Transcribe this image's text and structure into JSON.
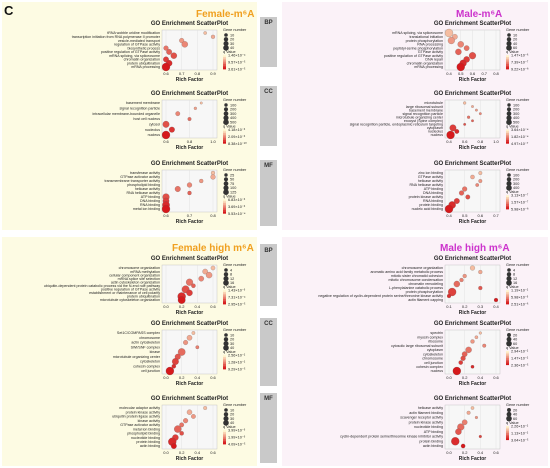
{
  "panel_letter": "C",
  "quadrants": [
    {
      "id": "female",
      "title": "Female-m⁶A",
      "color": "#f0a020"
    },
    {
      "id": "male",
      "title": "Male-m⁶A",
      "color": "#cc33cc"
    },
    {
      "id": "female-high",
      "title": "Female high m⁶A",
      "color": "#f0a020"
    },
    {
      "id": "male-high",
      "title": "Male high m⁶A",
      "color": "#cc33cc"
    }
  ],
  "categories": [
    {
      "label": "BP"
    },
    {
      "label": "CC"
    },
    {
      "label": "MF"
    },
    {
      "label": "BP"
    },
    {
      "label": "CC"
    },
    {
      "label": "MF"
    }
  ],
  "chart_data": [
    {
      "type": "scatter",
      "title": "GO Enrichment ScatterPlot",
      "xlabel": "Rich Factor",
      "legend_size_title": "Gene number",
      "legend_color_title": "q Value",
      "terms": [
        "tRNA wobble uridine modification",
        "transcription initiation from RNA polymerase II promoter",
        "vesicle-mediated transport",
        "regulation of GTPase activity",
        "biosynthetic process",
        "positive regulation of GTPase activity",
        "mRNA splicing, via spliceosome",
        "chromatin organization",
        "protein ubiquitination",
        "mRNA processing"
      ],
      "x": [
        0.85,
        0.9,
        0.7,
        0.72,
        0.6,
        0.62,
        0.65,
        0.6,
        0.62,
        0.55
      ],
      "size": [
        5,
        10,
        20,
        40,
        20,
        30,
        40,
        30,
        40,
        80
      ],
      "xticks": [
        "0.6",
        "0.7",
        "0.8",
        "0.9"
      ],
      "size_legend": [
        "10",
        "20",
        "30",
        "40"
      ],
      "color_legend": [
        "1.46×10⁻⁴",
        "9.57×10⁻⁵",
        "3.61×10⁻⁵"
      ]
    },
    {
      "type": "scatter",
      "title": "GO Enrichment ScatterPlot",
      "xlabel": "Rich Factor",
      "legend_size_title": "Gene number",
      "legend_color_title": "q Value",
      "terms": [
        "mRNA splicing, via spliceosome",
        "translational initiation",
        "protein phosphorylation",
        "RNA processing",
        "peptidyl-serine phosphorylation",
        "GTPase activity",
        "positive regulation of GTPase activity",
        "DNA repair",
        "chromatin organization",
        "mRNA processing"
      ],
      "x": [
        0.4,
        0.45,
        0.42,
        0.5,
        0.55,
        0.48,
        0.6,
        0.55,
        0.52,
        0.5
      ],
      "size": [
        60,
        20,
        40,
        30,
        20,
        30,
        40,
        30,
        40,
        60
      ],
      "xticks": [
        "0.4",
        "0.5",
        "0.6",
        "0.7",
        "0.8"
      ],
      "size_legend": [
        "10",
        "20",
        "40",
        "60"
      ],
      "color_legend": [
        "1.47×10⁻⁶",
        "7.39×10⁻⁷",
        "9.22×10⁻⁸"
      ]
    },
    {
      "type": "scatter",
      "title": "GO Enrichment ScatterPlot",
      "xlabel": "Rich Factor",
      "legend_size_title": "Gene number",
      "legend_color_title": "q Value",
      "terms": [
        "basement membrane",
        "signal recognition particle",
        "intracellular membrane-bounded organelle",
        "host cell nucleus",
        "cytosol",
        "nucleolus",
        "nucleus"
      ],
      "x": [
        0.9,
        0.85,
        0.7,
        0.8,
        0.6,
        0.65,
        0.55
      ],
      "size": [
        10,
        20,
        100,
        50,
        300,
        200,
        500
      ],
      "xticks": [
        "0.6",
        "0.8",
        "1.0"
      ],
      "size_legend": [
        "100",
        "200",
        "300",
        "400",
        "500"
      ],
      "color_legend": [
        "4.18×10⁻³",
        "2.09×10⁻³",
        "8.38×10⁻¹⁰"
      ]
    },
    {
      "type": "scatter",
      "title": "GO Enrichment ScatterPlot",
      "xlabel": "Rich Factor",
      "legend_size_title": "Gene number",
      "legend_color_title": "q Value",
      "terms": [
        "microtubule",
        "large ribosomal subunit",
        "basement membrane",
        "signal recognition particle",
        "microtubule organizing center",
        "exocyst (Spine complex)",
        "signal recognition particle, endoplasmic reticulum targeting",
        "cytoplasm",
        "nucleolus",
        "nucleus"
      ],
      "x": [
        0.6,
        0.7,
        0.75,
        0.8,
        0.65,
        0.7,
        0.6,
        0.45,
        0.5,
        0.42
      ],
      "size": [
        20,
        10,
        10,
        10,
        20,
        10,
        10,
        300,
        100,
        500
      ],
      "xticks": [
        "0.4",
        "0.6",
        "0.8",
        "1.0"
      ],
      "size_legend": [
        "100",
        "200",
        "300",
        "400",
        "500"
      ],
      "color_legend": [
        "3.64×10⁻⁴",
        "1.82×10⁻⁴",
        "4.97×10⁻⁷"
      ]
    },
    {
      "type": "scatter",
      "title": "GO Enrichment ScatterPlot",
      "xlabel": "Rich Factor",
      "legend_size_title": "Gene number",
      "legend_color_title": "q Value",
      "terms": [
        "transferase activity",
        "GTPase activator activity",
        "transmembrane transporter activity",
        "phospholipid binding",
        "helicase activity",
        "RNA helicase activity",
        "ATP binding",
        "DNA binding",
        "RNA binding",
        "metal ion binding"
      ],
      "x": [
        0.85,
        0.8,
        0.75,
        0.7,
        0.65,
        0.7,
        0.6,
        0.58,
        0.55,
        0.52
      ],
      "size": [
        20,
        40,
        20,
        40,
        60,
        20,
        100,
        80,
        120,
        150
      ],
      "xticks": [
        "0.6",
        "0.7",
        "0.8"
      ],
      "size_legend": [
        "25",
        "50",
        "75",
        "100",
        "125"
      ],
      "color_legend": [
        "6.83×10⁻³",
        "3.69×10⁻³",
        "5.53×10⁻⁴"
      ]
    },
    {
      "type": "scatter",
      "title": "GO Enrichment ScatterPlot",
      "xlabel": "Rich Factor",
      "legend_size_title": "Gene number",
      "legend_color_title": "q Value",
      "terms": [
        "zinc ion binding",
        "GTPase activity",
        "helicase activity",
        "RNA helicase activity",
        "ATP binding",
        "DNA binding",
        "protein kinase activity",
        "RNA binding",
        "protein binding",
        "nucleic acid binding"
      ],
      "x": [
        0.6,
        0.55,
        0.6,
        0.58,
        0.5,
        0.48,
        0.52,
        0.45,
        0.42,
        0.4
      ],
      "size": [
        40,
        60,
        40,
        30,
        100,
        100,
        80,
        150,
        300,
        400
      ],
      "xticks": [
        "0.4",
        "0.5",
        "0.6",
        "0.7"
      ],
      "size_legend": [
        "100",
        "200",
        "300",
        "400"
      ],
      "color_legend": [
        "3.13×10⁻⁷",
        "1.57×10⁻⁷",
        "5.98×10⁻⁸"
      ]
    },
    {
      "type": "scatter",
      "title": "GO Enrichment ScatterPlot",
      "xlabel": "Rich Factor",
      "legend_size_title": "Gene number",
      "legend_color_title": "q Value",
      "terms": [
        "chromosome organization",
        "mRNA methylation",
        "cellular component organization",
        "mRNA splice site selection",
        "actin cytoskeleton organization",
        "ubiquitin-dependent protein catabolic process via the N-end rule pathway",
        "positive regulation of GTPase activity",
        "establishment or maintenance of cell polarity",
        "protein ubiquitination",
        "microtubule cytoskeleton organization"
      ],
      "x": [
        0.6,
        0.5,
        0.55,
        0.45,
        0.3,
        0.35,
        0.25,
        0.3,
        0.2,
        0.2
      ],
      "size": [
        2,
        4,
        6,
        4,
        8,
        2,
        10,
        6,
        12,
        10
      ],
      "xticks": [
        "0.0",
        "0.2",
        "0.4",
        "0.6"
      ],
      "size_legend": [
        "4",
        "8",
        "12",
        "16"
      ],
      "color_legend": [
        "1.43×10⁻³",
        "7.31×10⁻⁴",
        "2.95×10⁻⁵"
      ]
    },
    {
      "type": "scatter",
      "title": "GO Enrichment ScatterPlot",
      "xlabel": "Rich Factor",
      "legend_size_title": "Gene number",
      "legend_color_title": "q Value",
      "terms": [
        "chromosome organization",
        "aromatic amino acid family metabolic process",
        "mitotic sister chromatid cohesion",
        "mitotic chromosome condensation",
        "chromatin remodeling",
        "L-phenylalanine catabolic process",
        "protein phosphorylation",
        "negative regulation of cyclin-dependent protein serine/threonine kinase activity",
        "actin filament capping"
      ],
      "x": [
        0.25,
        0.3,
        0.2,
        0.18,
        0.15,
        0.3,
        0.12,
        0.1,
        0.4
      ],
      "size": [
        4,
        2,
        2,
        2,
        8,
        2,
        16,
        2,
        2
      ],
      "xticks": [
        "0.1",
        "0.2",
        "0.3",
        "0.4"
      ],
      "size_legend": [
        "4",
        "8",
        "12",
        "16"
      ],
      "color_legend": [
        "1.19×10⁻²",
        "5.98×10⁻³",
        "2.51×10⁻⁶"
      ]
    },
    {
      "type": "scatter",
      "title": "GO Enrichment ScatterPlot",
      "xlabel": "Rich Factor",
      "legend_size_title": "Gene number",
      "legend_color_title": "q Value",
      "terms": [
        "Set1C/COMPASS complex",
        "chromosome",
        "actin cytoskeleton",
        "SWI/SNF complex",
        "kinase",
        "microtubule organizing center",
        "cytoskeleton",
        "cohesin complex",
        "cell junction"
      ],
      "x": [
        0.35,
        0.3,
        0.25,
        0.4,
        0.2,
        0.15,
        0.12,
        0.1,
        0.05
      ],
      "size": [
        2,
        8,
        6,
        2,
        20,
        10,
        15,
        4,
        25
      ],
      "xticks": [
        "0.0",
        "0.2",
        "0.4",
        "0.6"
      ],
      "size_legend": [
        "10",
        "20",
        "30",
        "40"
      ],
      "color_legend": [
        "2.56×10⁻²",
        "1.28×10⁻²",
        "9.29×10⁻⁵"
      ]
    },
    {
      "type": "scatter",
      "title": "GO Enrichment ScatterPlot",
      "xlabel": "Rich Factor",
      "legend_size_title": "Gene number",
      "legend_color_title": "q Value",
      "terms": [
        "spectrin",
        "myosin complex",
        "ribosome",
        "cytosolic large ribosomal subunit",
        "cytoplasm",
        "cytoskeleton",
        "chromosome",
        "cell junction",
        "cohesin complex",
        "nucleus"
      ],
      "x": [
        0.4,
        0.35,
        0.3,
        0.45,
        0.25,
        0.2,
        0.18,
        0.15,
        0.3,
        0.1
      ],
      "size": [
        2,
        4,
        8,
        6,
        30,
        20,
        15,
        10,
        4,
        60
      ],
      "xticks": [
        "0.0",
        "0.2",
        "0.4",
        "0.6"
      ],
      "size_legend": [
        "20",
        "40",
        "60"
      ],
      "color_legend": [
        "2.94×10⁻²",
        "1.47×10⁻²",
        "2.36×10⁻⁵"
      ]
    },
    {
      "type": "scatter",
      "title": "GO Enrichment ScatterPlot",
      "xlabel": "Rich Factor",
      "legend_size_title": "Gene number",
      "legend_color_title": "q Value",
      "terms": [
        "molecular adaptor activity",
        "protein kinase activity",
        "ubiquitin protein ligase activity",
        "kinase activity",
        "GTPase activator activity",
        "metal ion binding",
        "phospholipid binding",
        "nucleotide binding",
        "protein binding",
        "actin binding"
      ],
      "x": [
        0.5,
        0.3,
        0.35,
        0.25,
        0.2,
        0.15,
        0.2,
        0.12,
        0.08,
        0.1
      ],
      "size": [
        4,
        12,
        8,
        10,
        8,
        30,
        6,
        20,
        40,
        15
      ],
      "xticks": [
        "0.0",
        "0.2",
        "0.4",
        "0.6"
      ],
      "size_legend": [
        "10",
        "20",
        "30",
        "40"
      ],
      "color_legend": [
        "3.99×10⁻³",
        "1.99×10⁻³",
        "4.09×10⁻⁵"
      ]
    },
    {
      "type": "scatter",
      "title": "GO Enrichment ScatterPlot",
      "xlabel": "Rich Factor",
      "legend_size_title": "Gene number",
      "legend_color_title": "q Value",
      "terms": [
        "helicase activity",
        "actin filament binding",
        "scavenger receptor activity",
        "protein kinase activity",
        "nucleotide binding",
        "ATP binding",
        "cyclin-dependent protein serine/threonine kinase inhibitor activity",
        "protein binding",
        "actin binding"
      ],
      "x": [
        0.3,
        0.25,
        0.35,
        0.2,
        0.15,
        0.12,
        0.4,
        0.08,
        0.18
      ],
      "size": [
        4,
        6,
        2,
        20,
        40,
        30,
        2,
        60,
        10
      ],
      "xticks": [
        "0.0",
        "0.2",
        "0.4",
        "0.6"
      ],
      "size_legend": [
        "20",
        "40",
        "60"
      ],
      "color_legend": [
        "2.26×10⁻²",
        "1.13×10⁻²",
        "3.04×10⁻⁵"
      ]
    }
  ]
}
